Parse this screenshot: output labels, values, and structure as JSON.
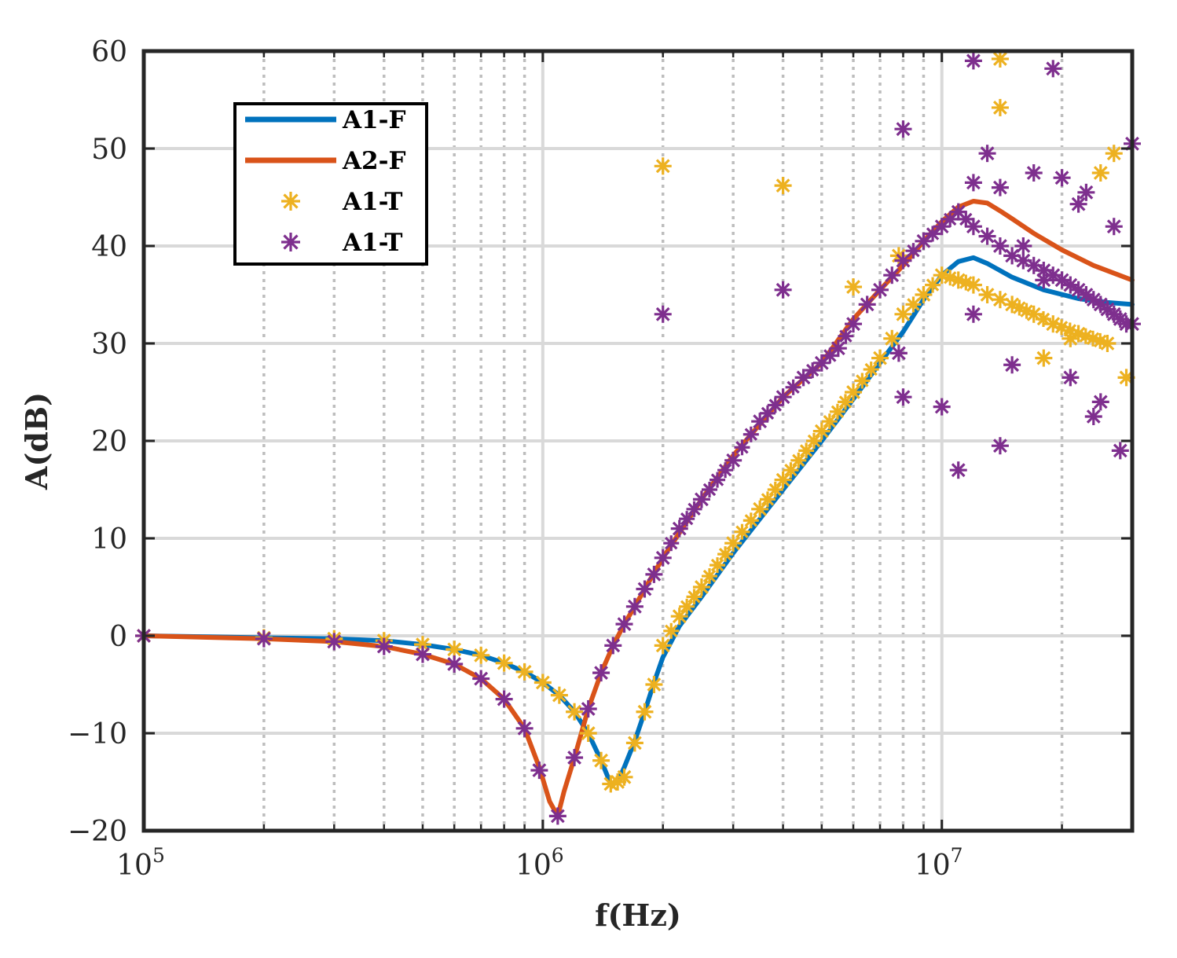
{
  "chart_data": {
    "type": "line",
    "xscale": "log",
    "xlabel": "f(Hz)",
    "ylabel": "A(dB)",
    "xlim": [
      100000,
      30000000
    ],
    "ylim": [
      -20,
      60
    ],
    "xticks": [
      {
        "base": "10",
        "exp": "5"
      },
      {
        "base": "10",
        "exp": "6"
      },
      {
        "base": "10",
        "exp": "7"
      }
    ],
    "xtick_values": [
      100000,
      1000000,
      10000000
    ],
    "yticks": [
      -20,
      -10,
      0,
      10,
      20,
      30,
      40,
      50,
      60
    ],
    "ytick_labels": [
      "−20",
      "−10",
      "0",
      "10",
      "20",
      "30",
      "40",
      "50",
      "60"
    ],
    "grid": true,
    "legend_position": "top-left",
    "colors": {
      "blue": "#0072BD",
      "orange": "#D95319",
      "yellow": "#EDB120",
      "purple": "#7E2F8E",
      "grid": "#d9d9d9",
      "axis": "#262626"
    },
    "series": [
      {
        "name": "A1-F",
        "kind": "line",
        "color": "#0072BD",
        "x": [
          100000,
          200000,
          300000,
          400000,
          500000,
          600000,
          700000,
          800000,
          900000,
          1000000,
          1100000,
          1200000,
          1300000,
          1400000,
          1480000,
          1540000,
          1600000,
          1700000,
          1800000,
          1900000,
          2000000,
          2200000,
          2500000,
          3000000,
          3500000,
          4000000,
          5000000,
          6000000,
          7000000,
          8000000,
          9000000,
          10000000,
          11000000,
          12000000,
          13000000,
          15000000,
          18000000,
          22000000,
          26000000,
          30000000
        ],
        "y": [
          0,
          -0.2,
          -0.3,
          -0.5,
          -0.9,
          -1.4,
          -2.0,
          -2.8,
          -3.7,
          -4.8,
          -6.1,
          -7.8,
          -10.0,
          -12.8,
          -15.2,
          -15.0,
          -13.5,
          -10.8,
          -7.8,
          -4.8,
          -2.2,
          1.0,
          4.0,
          8.5,
          12.0,
          15.0,
          20.0,
          24.3,
          28.0,
          31.2,
          34.5,
          37.0,
          38.4,
          38.8,
          38.2,
          36.8,
          35.5,
          34.6,
          34.2,
          34.0
        ]
      },
      {
        "name": "A2-F",
        "kind": "line",
        "color": "#D95319",
        "x": [
          100000,
          200000,
          300000,
          400000,
          500000,
          600000,
          700000,
          800000,
          900000,
          980000,
          1040000,
          1090000,
          1130000,
          1200000,
          1300000,
          1400000,
          1500000,
          1600000,
          1700000,
          1800000,
          2000000,
          2500000,
          3000000,
          4000000,
          5000000,
          6000000,
          7000000,
          8000000,
          9000000,
          10000000,
          11000000,
          12000000,
          13000000,
          14000000,
          15000000,
          17000000,
          20000000,
          24000000,
          30000000
        ],
        "y": [
          0,
          -0.3,
          -0.6,
          -1.1,
          -1.9,
          -2.9,
          -4.4,
          -6.5,
          -9.5,
          -13.5,
          -17.0,
          -18.5,
          -16.0,
          -12.5,
          -7.5,
          -3.8,
          -1.0,
          1.2,
          3.0,
          4.8,
          8.0,
          14.0,
          18.5,
          24.5,
          28.0,
          32.5,
          35.5,
          38.0,
          40.5,
          42.5,
          44.0,
          44.6,
          44.4,
          43.6,
          42.8,
          41.3,
          39.6,
          38.0,
          36.5
        ]
      },
      {
        "name": "A1-T",
        "kind": "scatter",
        "color": "#EDB120",
        "x": [
          100000,
          200000,
          300000,
          400000,
          500000,
          600000,
          700000,
          800000,
          900000,
          1000000,
          1100000,
          1200000,
          1300000,
          1400000,
          1480000,
          1540000,
          1600000,
          1700000,
          1800000,
          1900000,
          2000000,
          2200000,
          2500000,
          3000000,
          3500000,
          4000000,
          5000000,
          6000000,
          7000000,
          7500000,
          8000000,
          9000000,
          10000000,
          11000000,
          12000000,
          13000000,
          14000000,
          15000000,
          17000000,
          19000000,
          22000000,
          26000000,
          2000000,
          4000000,
          6000000,
          7800000,
          14000000,
          14000000,
          25000000,
          27000000,
          18000000,
          21000000,
          29000000
        ],
        "y": [
          0,
          -0.2,
          -0.3,
          -0.5,
          -0.9,
          -1.4,
          -2.0,
          -2.8,
          -3.7,
          -4.8,
          -6.1,
          -7.8,
          -10.0,
          -12.8,
          -15.2,
          -15.0,
          -14.5,
          -11.0,
          -7.8,
          -5.0,
          -1.0,
          2.0,
          5.0,
          9.5,
          13.0,
          16.0,
          21.0,
          25.0,
          28.5,
          30.5,
          33.0,
          35.0,
          37.0,
          36.5,
          36.0,
          35.0,
          34.5,
          34.0,
          33.0,
          32.0,
          31.0,
          30.0,
          48.2,
          46.2,
          35.8,
          39.0,
          59.2,
          54.2,
          47.5,
          49.5,
          28.5,
          30.5,
          26.5
        ]
      },
      {
        "name": "A1-T",
        "kind": "scatter",
        "color": "#7E2F8E",
        "x": [
          100000,
          200000,
          300000,
          400000,
          500000,
          600000,
          700000,
          800000,
          900000,
          980000,
          1090000,
          1200000,
          1300000,
          1400000,
          1500000,
          1600000,
          1700000,
          1800000,
          1900000,
          2000000,
          2200000,
          2500000,
          3000000,
          3500000,
          4000000,
          4500000,
          5000000,
          5500000,
          6000000,
          6500000,
          7000000,
          7500000,
          8000000,
          9000000,
          10000000,
          11000000,
          12000000,
          13000000,
          14000000,
          15000000,
          16000000,
          17000000,
          18000000,
          19000000,
          20000000,
          21000000,
          22000000,
          23000000,
          24000000,
          25000000,
          26000000,
          27000000,
          28000000,
          29000000,
          30000000,
          2000000,
          4000000,
          12000000,
          19000000,
          8000000,
          12000000,
          14000000,
          17000000,
          20000000,
          23000000,
          27000000,
          14000000,
          13000000,
          11000000,
          10000000,
          7800000,
          8000000,
          12000000,
          15000000,
          18000000,
          21000000,
          24000000,
          28000000,
          22000000,
          30000000,
          16000000,
          25000000
        ],
        "y": [
          0,
          -0.3,
          -0.6,
          -1.1,
          -1.9,
          -2.9,
          -4.4,
          -6.5,
          -9.5,
          -13.8,
          -18.5,
          -12.5,
          -7.5,
          -3.8,
          -1.0,
          1.2,
          3.0,
          4.8,
          6.3,
          8.0,
          11.0,
          14.0,
          18.0,
          22.0,
          24.5,
          26.5,
          28.0,
          29.5,
          32.0,
          34.0,
          35.5,
          37.0,
          38.5,
          40.5,
          42.0,
          43.5,
          42.0,
          41.0,
          40.0,
          39.0,
          38.5,
          38.0,
          37.5,
          37.0,
          36.5,
          36.0,
          35.5,
          35.0,
          34.5,
          34.0,
          33.5,
          33.0,
          32.5,
          32.0,
          32.0,
          33.0,
          35.5,
          59.0,
          58.2,
          52.0,
          46.5,
          46.0,
          47.5,
          47.0,
          45.5,
          42.0,
          19.5,
          49.5,
          17.0,
          23.5,
          29.0,
          24.5,
          33.0,
          27.8,
          36.5,
          26.5,
          22.5,
          19.0,
          44.3,
          50.5,
          40.0,
          24.0
        ]
      }
    ]
  }
}
